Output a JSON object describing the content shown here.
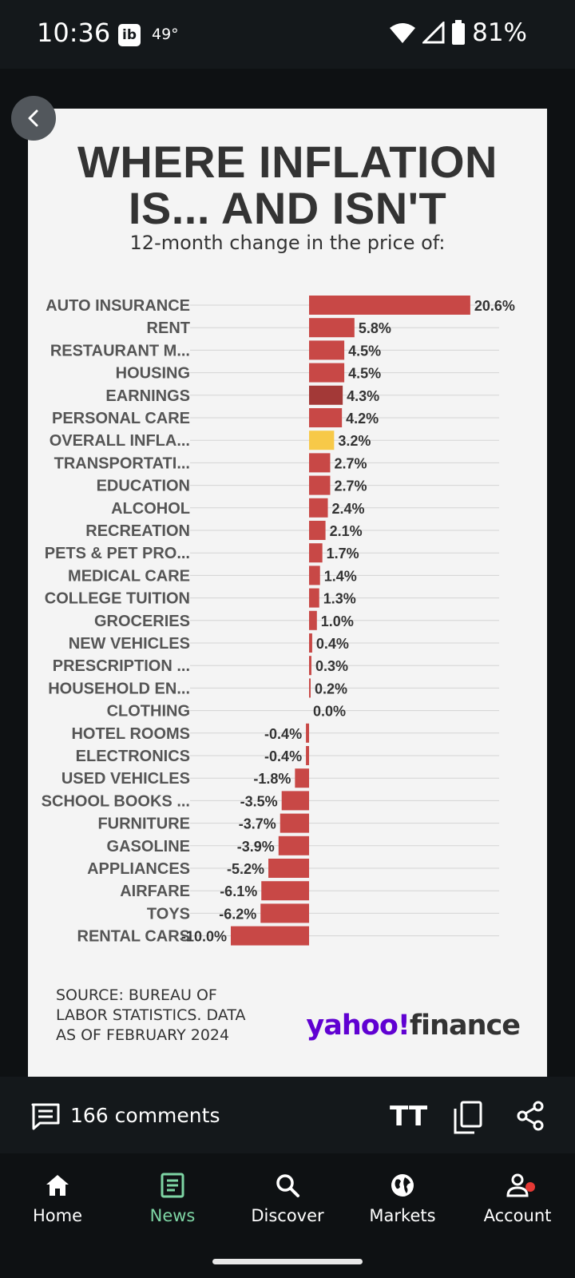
{
  "status_bar": {
    "time": "10:36",
    "app_icon": "ib",
    "temperature": "49°",
    "battery": "81%"
  },
  "infographic": {
    "title_line1": "WHERE INFLATION",
    "title_line2": "IS... AND ISN'T",
    "subtitle": "12-month change in the price of:",
    "source_line1": "SOURCE: BUREAU OF",
    "source_line2": "LABOR STATISTICS. DATA",
    "source_line3": "AS OF FEBRUARY 2024",
    "logo_part1": "yahoo!",
    "logo_part2": "finance"
  },
  "chart_data": {
    "type": "bar",
    "orientation": "horizontal",
    "title": "WHERE INFLATION IS... AND ISN'T",
    "subtitle": "12-month change in the price of:",
    "categories": [
      "AUTO INSURANCE",
      "RENT",
      "RESTAURANT M...",
      "HOUSING",
      "EARNINGS",
      "PERSONAL CARE",
      "OVERALL INFLA...",
      "TRANSPORTATI...",
      "EDUCATION",
      "ALCOHOL",
      "RECREATION",
      "PETS & PET PRO...",
      "MEDICAL CARE",
      "COLLEGE TUITION",
      "GROCERIES",
      "NEW VEHICLES",
      "PRESCRIPTION ...",
      "HOUSEHOLD EN...",
      "CLOTHING",
      "HOTEL ROOMS",
      "ELECTRONICS",
      "USED VEHICLES",
      "SCHOOL BOOKS ...",
      "FURNITURE",
      "GASOLINE",
      "APPLIANCES",
      "AIRFARE",
      "TOYS",
      "RENTAL CARS"
    ],
    "values": [
      20.6,
      5.8,
      4.5,
      4.5,
      4.3,
      4.2,
      3.2,
      2.7,
      2.7,
      2.4,
      2.1,
      1.7,
      1.4,
      1.3,
      1.0,
      0.4,
      0.3,
      0.2,
      0.0,
      -0.4,
      -0.4,
      -1.8,
      -3.5,
      -3.7,
      -3.9,
      -5.2,
      -6.1,
      -6.2,
      -10.0
    ],
    "labels": [
      "20.6%",
      "5.8%",
      "4.5%",
      "4.5%",
      "4.3%",
      "4.2%",
      "3.2%",
      "2.7%",
      "2.7%",
      "2.4%",
      "2.1%",
      "1.7%",
      "1.4%",
      "1.3%",
      "1.0%",
      "0.4%",
      "0.3%",
      "0.2%",
      "0.0%",
      "-0.4%",
      "-0.4%",
      "-1.8%",
      "-3.5%",
      "-3.7%",
      "-3.9%",
      "-5.2%",
      "-6.1%",
      "-6.2%",
      "-10.0%"
    ],
    "colors": [
      "#c84846",
      "#c84846",
      "#c84846",
      "#c84846",
      "#a33937",
      "#c84846",
      "#f7c948",
      "#c84846",
      "#c84846",
      "#c84846",
      "#c84846",
      "#c84846",
      "#c84846",
      "#c84846",
      "#c84846",
      "#c84846",
      "#c84846",
      "#c84846",
      "#c84846",
      "#c84846",
      "#c84846",
      "#c84846",
      "#c84846",
      "#c84846",
      "#c84846",
      "#c84846",
      "#c84846",
      "#c84846",
      "#c84846"
    ],
    "xlim": [
      -10.0,
      20.6
    ],
    "grid": true,
    "legend": "none"
  },
  "action_bar": {
    "comments_label": "166 comments",
    "text_size_label": "TT"
  },
  "nav": {
    "items": [
      {
        "label": "Home",
        "icon": "home-icon"
      },
      {
        "label": "News",
        "icon": "news-icon"
      },
      {
        "label": "Discover",
        "icon": "search-icon"
      },
      {
        "label": "Markets",
        "icon": "globe-icon"
      },
      {
        "label": "Account",
        "icon": "account-icon"
      }
    ],
    "active": "News"
  },
  "colors": {
    "accent": "#7ed5a4",
    "bar": "#c84846",
    "highlight": "#f7c948",
    "brand": "#6001d2"
  }
}
